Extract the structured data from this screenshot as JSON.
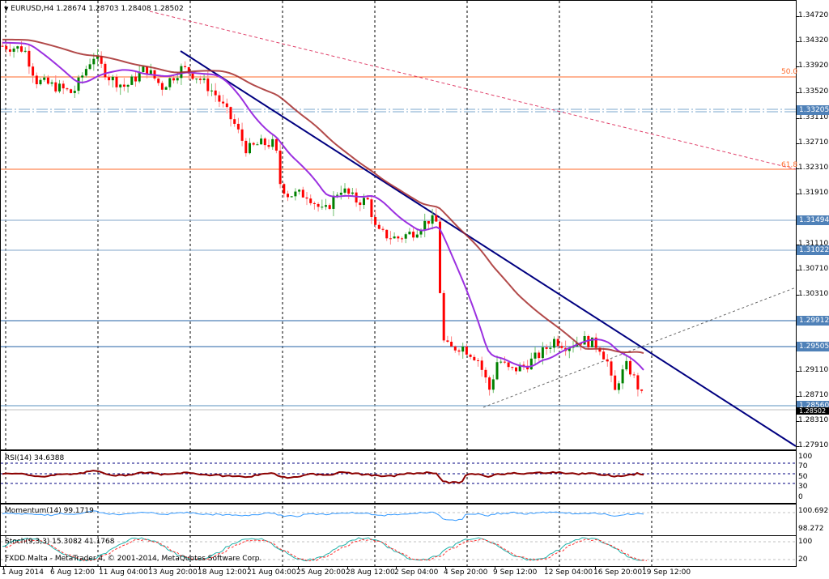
{
  "chart_data": {
    "type": "candlestick",
    "title": "EURUSD,H4",
    "ohlc_header": {
      "open": "1.28674",
      "high": "1.28703",
      "low": "1.28408",
      "close": "1.28502"
    },
    "symbol": "EURUSD",
    "timeframe": "H4",
    "y_axis": {
      "ticks": [
        "1.34720",
        "1.34320",
        "1.33920",
        "1.33520",
        "1.33110",
        "1.32710",
        "1.32310",
        "1.31910",
        "1.31110",
        "1.30710",
        "1.30310",
        "1.29110",
        "1.28710",
        "1.28310",
        "1.27910"
      ],
      "range": [
        1.2785,
        1.348
      ]
    },
    "x_axis": {
      "ticks": [
        "1 Aug 2014",
        "6 Aug 12:00",
        "11 Aug 04:00",
        "13 Aug 20:00",
        "18 Aug 12:00",
        "21 Aug 04:00",
        "25 Aug 20:00",
        "28 Aug 12:00",
        "2 Sep 04:00",
        "4 Sep 20:00",
        "9 Sep 12:00",
        "12 Sep 04:00",
        "16 Sep 20:00",
        "19 Sep 12:00"
      ]
    },
    "horizontal_levels": [
      {
        "label": "1.33205",
        "style": "dash-dot",
        "color": "#7ba7cc"
      },
      {
        "label": "1.31494",
        "style": "solid",
        "color": "#7ba7cc"
      },
      {
        "label": "1.31022",
        "style": "solid",
        "color": "#7ba7cc"
      },
      {
        "label": "1.29912",
        "style": "solid",
        "color": "#4f81b8"
      },
      {
        "label": "1.29505",
        "style": "solid",
        "color": "#4f81b8"
      },
      {
        "label": "1.28560",
        "style": "solid",
        "color": "#7ba7cc"
      },
      {
        "label": "1.28502",
        "style": "current",
        "color": "#000000"
      }
    ],
    "fibonacci": [
      {
        "level": "50.0",
        "price": 1.3376
      },
      {
        "level": "61.8",
        "price": 1.3231
      }
    ],
    "moving_averages": [
      {
        "name": "fast MA",
        "color": "#9b30e0"
      },
      {
        "name": "slow MA",
        "color": "#a52a2a"
      }
    ],
    "trendlines": [
      {
        "name": "downtrend",
        "color": "#000080"
      },
      {
        "name": "long-term downtrend",
        "color": "#e0406a",
        "style": "dashed"
      },
      {
        "name": "support trendline",
        "color": "#777777",
        "style": "dashed"
      }
    ],
    "indicators": [
      {
        "name": "RSI(14)",
        "value": "34.6388",
        "levels": [
          "100",
          "70",
          "50",
          "30",
          "0"
        ]
      },
      {
        "name": "Momentum(14)",
        "value": "99.1719",
        "scale": [
          "100.6926",
          "100",
          "98.272"
        ]
      },
      {
        "name": "Stoch(9,3,3)",
        "values": [
          "15.3082",
          "41.1768"
        ],
        "scale": [
          "100",
          "80",
          "20",
          "0"
        ]
      }
    ]
  },
  "header": {
    "title": "EURUSD,H4  1.28674 1.28703 1.28408 1.28502"
  },
  "price_tags": {
    "p1": "1.33205",
    "p2": "1.31494",
    "p3": "1.31022",
    "p4": "1.29912",
    "p5": "1.29505",
    "p6": "1.28560",
    "p7": "1.28502"
  },
  "fib_labels": {
    "f50": "50.0",
    "f618": "61.8"
  },
  "indicators": {
    "rsi": "RSI(14) 34.6388",
    "momentum": "Momentum(14) 99.1719",
    "stoch": "Stoch(9,3,3) 15.3082 41.1768",
    "rsi_levels": [
      "100",
      "70",
      "50",
      "30",
      "0"
    ],
    "mom_levels": [
      "100.6926",
      "98.272"
    ],
    "stoch_levels": [
      "100",
      "20"
    ]
  },
  "copyright": "FXDD Malta - MetaTrader 4, © 2001-2014, MetaQuotes Software Corp."
}
